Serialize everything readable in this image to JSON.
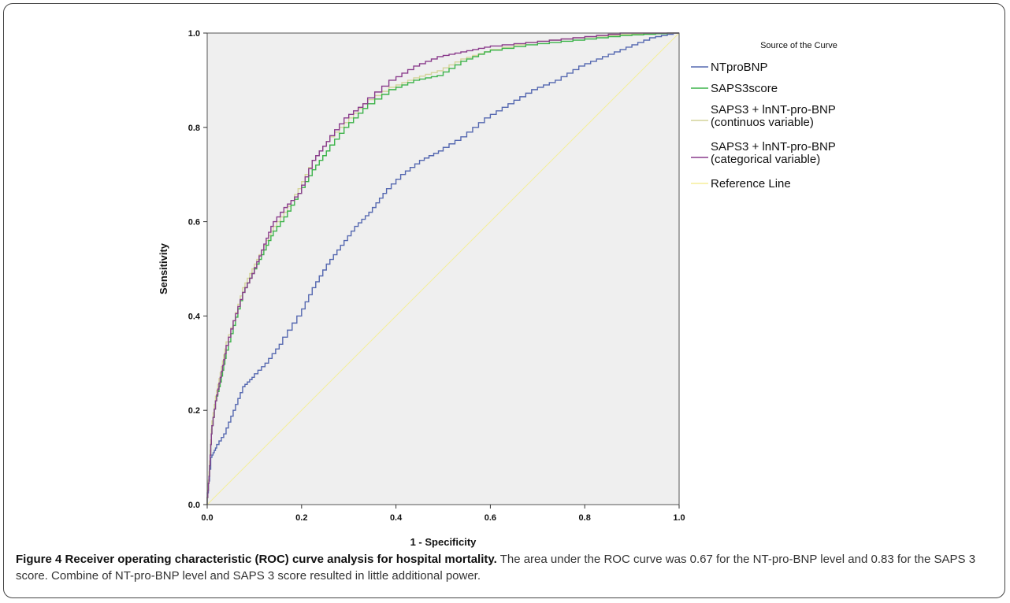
{
  "caption": {
    "label": "Figure 4",
    "title": "Receiver operating characteristic (ROC) curve analysis for hospital mortality.",
    "text": "The area under the ROC curve was 0.67 for the NT-pro-BNP level and 0.83 for the SAPS 3 score. Combine of NT-pro-BNP level and SAPS 3 score resulted in little additional power."
  },
  "colors": {
    "plot_background": "#efefef",
    "ntprobnp": "#5568b0",
    "saps3score": "#3cb34a",
    "continuous": "#d4d49a",
    "categorical": "#8a3c8c",
    "reference": "#f5ee9a"
  },
  "chart_data": {
    "type": "line",
    "title": "",
    "xlabel": "1 - Specificity",
    "ylabel": "Sensitivity",
    "xlim": [
      0,
      1
    ],
    "ylim": [
      0,
      1
    ],
    "xticks": [
      "0.0",
      "0.2",
      "0.4",
      "0.6",
      "0.8",
      "1.0"
    ],
    "yticks": [
      "0.0",
      "0.2",
      "0.4",
      "0.6",
      "0.8",
      "1.0"
    ],
    "grid": false,
    "legend_title": "Source of the Curve",
    "legend_position": "right",
    "series": [
      {
        "name": "NTproBNP",
        "x": [
          0,
          0.01,
          0.02,
          0.04,
          0.06,
          0.08,
          0.1,
          0.13,
          0.16,
          0.2,
          0.23,
          0.26,
          0.29,
          0.32,
          0.35,
          0.38,
          0.42,
          0.46,
          0.5,
          0.55,
          0.6,
          0.65,
          0.7,
          0.75,
          0.8,
          0.85,
          0.9,
          0.95,
          1.0
        ],
        "y": [
          0,
          0.1,
          0.12,
          0.15,
          0.2,
          0.25,
          0.27,
          0.3,
          0.34,
          0.4,
          0.46,
          0.51,
          0.55,
          0.59,
          0.62,
          0.66,
          0.7,
          0.73,
          0.75,
          0.78,
          0.82,
          0.85,
          0.88,
          0.9,
          0.93,
          0.95,
          0.97,
          0.99,
          1.0
        ]
      },
      {
        "name": "SAPS3score",
        "x": [
          0,
          0.005,
          0.01,
          0.02,
          0.03,
          0.04,
          0.06,
          0.08,
          0.1,
          0.12,
          0.14,
          0.17,
          0.2,
          0.23,
          0.26,
          0.3,
          0.34,
          0.4,
          0.45,
          0.5,
          0.55,
          0.6,
          0.7,
          0.8,
          0.9,
          1.0
        ],
        "y": [
          0,
          0.06,
          0.15,
          0.22,
          0.26,
          0.31,
          0.38,
          0.45,
          0.49,
          0.53,
          0.57,
          0.61,
          0.66,
          0.71,
          0.75,
          0.8,
          0.84,
          0.88,
          0.9,
          0.91,
          0.94,
          0.96,
          0.975,
          0.985,
          0.995,
          1.0
        ]
      },
      {
        "name": "SAPS3 + lnNT-pro-BNP (continuos variable)",
        "x": [
          0,
          0.005,
          0.01,
          0.02,
          0.03,
          0.04,
          0.06,
          0.08,
          0.1,
          0.12,
          0.14,
          0.17,
          0.2,
          0.23,
          0.26,
          0.3,
          0.34,
          0.4,
          0.45,
          0.5,
          0.55,
          0.6,
          0.7,
          0.8,
          0.9,
          1.0
        ],
        "y": [
          0,
          0.07,
          0.16,
          0.23,
          0.28,
          0.33,
          0.39,
          0.46,
          0.5,
          0.54,
          0.58,
          0.62,
          0.67,
          0.73,
          0.77,
          0.81,
          0.85,
          0.885,
          0.905,
          0.92,
          0.945,
          0.96,
          0.98,
          0.99,
          0.997,
          1.0
        ]
      },
      {
        "name": "SAPS3 + lnNT-pro-BNP (categorical variable)",
        "x": [
          0,
          0.005,
          0.01,
          0.02,
          0.03,
          0.04,
          0.06,
          0.08,
          0.1,
          0.12,
          0.14,
          0.17,
          0.2,
          0.23,
          0.26,
          0.3,
          0.34,
          0.4,
          0.45,
          0.5,
          0.55,
          0.6,
          0.7,
          0.8,
          0.9,
          1.0
        ],
        "y": [
          0,
          0.06,
          0.15,
          0.22,
          0.27,
          0.32,
          0.39,
          0.45,
          0.49,
          0.54,
          0.59,
          0.63,
          0.66,
          0.73,
          0.77,
          0.82,
          0.85,
          0.9,
          0.93,
          0.95,
          0.96,
          0.97,
          0.98,
          0.99,
          1.0,
          1.0
        ]
      },
      {
        "name": "Reference Line",
        "x": [
          0,
          1
        ],
        "y": [
          0,
          1
        ]
      }
    ]
  }
}
